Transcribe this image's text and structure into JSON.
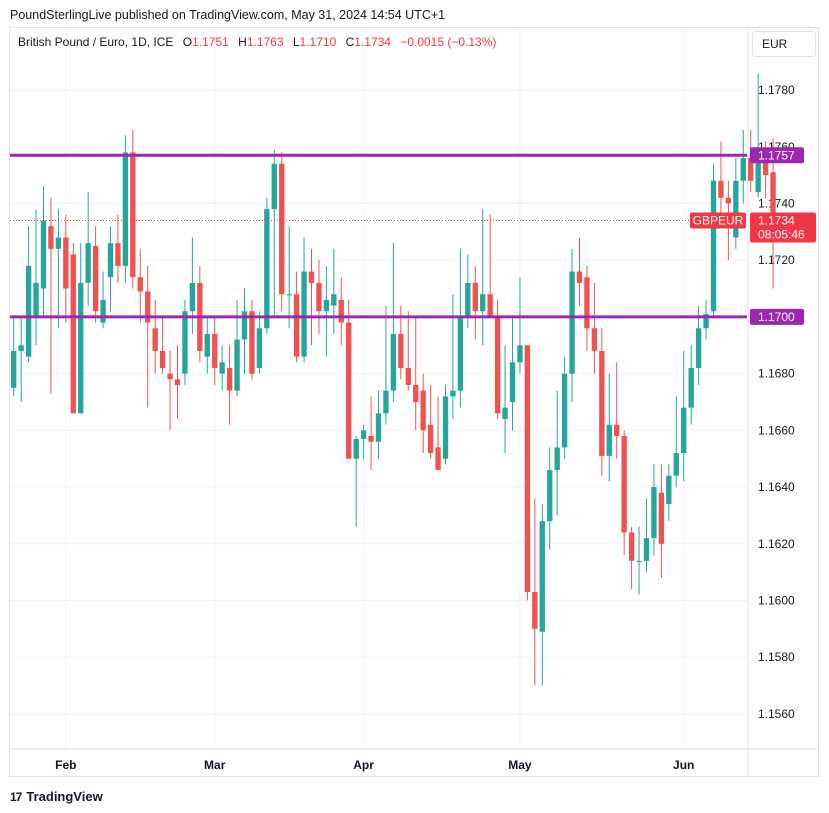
{
  "header": {
    "published": "PoundSterlingLive published on TradingView.com, May 31, 2024 14:54 UTC+1"
  },
  "legend": {
    "symbol": "British Pound / Euro, 1D, ICE",
    "o_label": "O",
    "o_value": "1.1751",
    "h_label": "H",
    "h_value": "1.1763",
    "l_label": "L",
    "l_value": "1.1710",
    "c_label": "C",
    "c_value": "1.1734",
    "change": "−0.0015 (−0.13%)"
  },
  "currency_button": "EUR",
  "footer": {
    "logo": "17",
    "brand": "TradingView"
  },
  "colors": {
    "up": "#26a69a",
    "down": "#ef5350",
    "level": "#9c27b0",
    "last": "#f23645"
  },
  "chart_data": {
    "type": "candlestick",
    "title": "British Pound / Euro, 1D, ICE",
    "y_ticks": [
      "1.1560",
      "1.1580",
      "1.1600",
      "1.1620",
      "1.1640",
      "1.1660",
      "1.1680",
      "1.1700",
      "1.1720",
      "1.1740",
      "1.1760",
      "1.1780"
    ],
    "y_tick_values": [
      1.156,
      1.158,
      1.16,
      1.162,
      1.164,
      1.166,
      1.168,
      1.17,
      1.172,
      1.174,
      1.176,
      1.178
    ],
    "ylim": [
      1.1548,
      1.1792
    ],
    "x_labels": [
      {
        "label": "Feb",
        "index": 7
      },
      {
        "label": "Mar",
        "index": 27
      },
      {
        "label": "Apr",
        "index": 47
      },
      {
        "label": "May",
        "index": 68
      },
      {
        "label": "Jun",
        "index": 90
      }
    ],
    "n_slots": 99,
    "levels": [
      {
        "value": 1.1757,
        "label": "1.1757"
      },
      {
        "value": 1.17,
        "label": "1.1700"
      }
    ],
    "last_price": {
      "value": 1.1734,
      "label": "1.1734",
      "symbol": "GBPEUR",
      "countdown": "08:05:46"
    },
    "candles": [
      {
        "o": 1.1675,
        "h": 1.17,
        "l": 1.1672,
        "c": 1.1688
      },
      {
        "o": 1.1688,
        "h": 1.17,
        "l": 1.167,
        "c": 1.169
      },
      {
        "o": 1.1686,
        "h": 1.1732,
        "l": 1.1684,
        "c": 1.1718
      },
      {
        "o": 1.17,
        "h": 1.1738,
        "l": 1.169,
        "c": 1.1712
      },
      {
        "o": 1.171,
        "h": 1.1746,
        "l": 1.17,
        "c": 1.1734
      },
      {
        "o": 1.1732,
        "h": 1.1742,
        "l": 1.1673,
        "c": 1.1724
      },
      {
        "o": 1.1724,
        "h": 1.1738,
        "l": 1.1696,
        "c": 1.1728
      },
      {
        "o": 1.1728,
        "h": 1.1736,
        "l": 1.1698,
        "c": 1.171
      },
      {
        "o": 1.1722,
        "h": 1.1726,
        "l": 1.1666,
        "c": 1.1666
      },
      {
        "o": 1.1666,
        "h": 1.1726,
        "l": 1.1666,
        "c": 1.1712
      },
      {
        "o": 1.1712,
        "h": 1.1744,
        "l": 1.1704,
        "c": 1.1726
      },
      {
        "o": 1.1725,
        "h": 1.1732,
        "l": 1.1698,
        "c": 1.1702
      },
      {
        "o": 1.1698,
        "h": 1.1716,
        "l": 1.1696,
        "c": 1.1706
      },
      {
        "o": 1.1714,
        "h": 1.1732,
        "l": 1.1702,
        "c": 1.1726
      },
      {
        "o": 1.1726,
        "h": 1.1736,
        "l": 1.1712,
        "c": 1.1718
      },
      {
        "o": 1.1718,
        "h": 1.1764,
        "l": 1.1712,
        "c": 1.1758
      },
      {
        "o": 1.1758,
        "h": 1.1766,
        "l": 1.171,
        "c": 1.1714
      },
      {
        "o": 1.1714,
        "h": 1.1724,
        "l": 1.1698,
        "c": 1.1709
      },
      {
        "o": 1.1709,
        "h": 1.1718,
        "l": 1.1668,
        "c": 1.1698
      },
      {
        "o": 1.1696,
        "h": 1.1706,
        "l": 1.168,
        "c": 1.1688
      },
      {
        "o": 1.1688,
        "h": 1.17,
        "l": 1.168,
        "c": 1.1682
      },
      {
        "o": 1.168,
        "h": 1.1688,
        "l": 1.166,
        "c": 1.1678
      },
      {
        "o": 1.1678,
        "h": 1.169,
        "l": 1.1664,
        "c": 1.1676
      },
      {
        "o": 1.168,
        "h": 1.1706,
        "l": 1.1676,
        "c": 1.1702
      },
      {
        "o": 1.1702,
        "h": 1.1728,
        "l": 1.1694,
        "c": 1.1712
      },
      {
        "o": 1.1712,
        "h": 1.1718,
        "l": 1.1684,
        "c": 1.1688
      },
      {
        "o": 1.1686,
        "h": 1.17,
        "l": 1.168,
        "c": 1.1694
      },
      {
        "o": 1.1694,
        "h": 1.17,
        "l": 1.1676,
        "c": 1.1682
      },
      {
        "o": 1.168,
        "h": 1.169,
        "l": 1.1674,
        "c": 1.1684
      },
      {
        "o": 1.1682,
        "h": 1.169,
        "l": 1.1662,
        "c": 1.1674
      },
      {
        "o": 1.1674,
        "h": 1.1706,
        "l": 1.1672,
        "c": 1.1692
      },
      {
        "o": 1.1692,
        "h": 1.171,
        "l": 1.168,
        "c": 1.1702
      },
      {
        "o": 1.1702,
        "h": 1.1706,
        "l": 1.1678,
        "c": 1.168
      },
      {
        "o": 1.1682,
        "h": 1.1702,
        "l": 1.168,
        "c": 1.1696
      },
      {
        "o": 1.1696,
        "h": 1.1742,
        "l": 1.1694,
        "c": 1.1738
      },
      {
        "o": 1.1738,
        "h": 1.1759,
        "l": 1.17,
        "c": 1.1754
      },
      {
        "o": 1.1754,
        "h": 1.1758,
        "l": 1.1702,
        "c": 1.1708
      },
      {
        "o": 1.1708,
        "h": 1.1732,
        "l": 1.1696,
        "c": 1.1708
      },
      {
        "o": 1.1708,
        "h": 1.1716,
        "l": 1.1684,
        "c": 1.1686
      },
      {
        "o": 1.1686,
        "h": 1.1728,
        "l": 1.1684,
        "c": 1.1716
      },
      {
        "o": 1.1716,
        "h": 1.1724,
        "l": 1.169,
        "c": 1.1712
      },
      {
        "o": 1.1712,
        "h": 1.172,
        "l": 1.1694,
        "c": 1.1702
      },
      {
        "o": 1.1702,
        "h": 1.1718,
        "l": 1.1686,
        "c": 1.1706
      },
      {
        "o": 1.1704,
        "h": 1.1724,
        "l": 1.1694,
        "c": 1.1708
      },
      {
        "o": 1.1706,
        "h": 1.1714,
        "l": 1.169,
        "c": 1.1698
      },
      {
        "o": 1.1698,
        "h": 1.1706,
        "l": 1.165,
        "c": 1.165
      },
      {
        "o": 1.165,
        "h": 1.1658,
        "l": 1.1626,
        "c": 1.1657
      },
      {
        "o": 1.1657,
        "h": 1.1662,
        "l": 1.165,
        "c": 1.166
      },
      {
        "o": 1.1658,
        "h": 1.1672,
        "l": 1.1646,
        "c": 1.1656
      },
      {
        "o": 1.1656,
        "h": 1.1674,
        "l": 1.165,
        "c": 1.1666
      },
      {
        "o": 1.1666,
        "h": 1.1704,
        "l": 1.1662,
        "c": 1.1674
      },
      {
        "o": 1.1674,
        "h": 1.1726,
        "l": 1.167,
        "c": 1.1694
      },
      {
        "o": 1.1694,
        "h": 1.1704,
        "l": 1.1678,
        "c": 1.1682
      },
      {
        "o": 1.1682,
        "h": 1.1702,
        "l": 1.1674,
        "c": 1.1676
      },
      {
        "o": 1.1676,
        "h": 1.17,
        "l": 1.166,
        "c": 1.167
      },
      {
        "o": 1.1674,
        "h": 1.168,
        "l": 1.1652,
        "c": 1.166
      },
      {
        "o": 1.1662,
        "h": 1.1676,
        "l": 1.165,
        "c": 1.1652
      },
      {
        "o": 1.1654,
        "h": 1.1672,
        "l": 1.1646,
        "c": 1.1646
      },
      {
        "o": 1.165,
        "h": 1.1676,
        "l": 1.1648,
        "c": 1.1672
      },
      {
        "o": 1.1672,
        "h": 1.1708,
        "l": 1.1664,
        "c": 1.1674
      },
      {
        "o": 1.1674,
        "h": 1.1724,
        "l": 1.1668,
        "c": 1.17
      },
      {
        "o": 1.17,
        "h": 1.1722,
        "l": 1.1696,
        "c": 1.1712
      },
      {
        "o": 1.1712,
        "h": 1.1718,
        "l": 1.1692,
        "c": 1.1702
      },
      {
        "o": 1.1702,
        "h": 1.1738,
        "l": 1.169,
        "c": 1.1708
      },
      {
        "o": 1.1708,
        "h": 1.1736,
        "l": 1.17,
        "c": 1.17
      },
      {
        "o": 1.17,
        "h": 1.1706,
        "l": 1.1664,
        "c": 1.1666
      },
      {
        "o": 1.1664,
        "h": 1.169,
        "l": 1.1652,
        "c": 1.1668
      },
      {
        "o": 1.167,
        "h": 1.17,
        "l": 1.166,
        "c": 1.1684
      },
      {
        "o": 1.1684,
        "h": 1.1714,
        "l": 1.168,
        "c": 1.169
      },
      {
        "o": 1.169,
        "h": 1.169,
        "l": 1.16,
        "c": 1.1603
      },
      {
        "o": 1.1603,
        "h": 1.1636,
        "l": 1.157,
        "c": 1.159
      },
      {
        "o": 1.1589,
        "h": 1.1634,
        "l": 1.157,
        "c": 1.1628
      },
      {
        "o": 1.1628,
        "h": 1.1654,
        "l": 1.1618,
        "c": 1.1646
      },
      {
        "o": 1.1646,
        "h": 1.1674,
        "l": 1.163,
        "c": 1.1654
      },
      {
        "o": 1.1654,
        "h": 1.1686,
        "l": 1.165,
        "c": 1.168
      },
      {
        "o": 1.168,
        "h": 1.1724,
        "l": 1.167,
        "c": 1.1716
      },
      {
        "o": 1.1716,
        "h": 1.1728,
        "l": 1.1704,
        "c": 1.1712
      },
      {
        "o": 1.1714,
        "h": 1.1718,
        "l": 1.1688,
        "c": 1.1696
      },
      {
        "o": 1.1696,
        "h": 1.1712,
        "l": 1.168,
        "c": 1.1688
      },
      {
        "o": 1.1688,
        "h": 1.1696,
        "l": 1.1644,
        "c": 1.1651
      },
      {
        "o": 1.1651,
        "h": 1.168,
        "l": 1.1642,
        "c": 1.1662
      },
      {
        "o": 1.1662,
        "h": 1.1684,
        "l": 1.165,
        "c": 1.1658
      },
      {
        "o": 1.1658,
        "h": 1.166,
        "l": 1.1616,
        "c": 1.1624
      },
      {
        "o": 1.1624,
        "h": 1.1626,
        "l": 1.1604,
        "c": 1.1614
      },
      {
        "o": 1.1614,
        "h": 1.1626,
        "l": 1.1602,
        "c": 1.1614
      },
      {
        "o": 1.1614,
        "h": 1.1636,
        "l": 1.161,
        "c": 1.1622
      },
      {
        "o": 1.1622,
        "h": 1.1648,
        "l": 1.1616,
        "c": 1.164
      },
      {
        "o": 1.1638,
        "h": 1.1648,
        "l": 1.1608,
        "c": 1.162
      },
      {
        "o": 1.1634,
        "h": 1.1648,
        "l": 1.1628,
        "c": 1.1644
      },
      {
        "o": 1.1644,
        "h": 1.1672,
        "l": 1.164,
        "c": 1.1652
      },
      {
        "o": 1.1652,
        "h": 1.1688,
        "l": 1.1642,
        "c": 1.1668
      },
      {
        "o": 1.1668,
        "h": 1.169,
        "l": 1.1662,
        "c": 1.1682
      },
      {
        "o": 1.1682,
        "h": 1.1704,
        "l": 1.1676,
        "c": 1.1696
      },
      {
        "o": 1.1696,
        "h": 1.1706,
        "l": 1.1692,
        "c": 1.1701
      },
      {
        "o": 1.1702,
        "h": 1.1754,
        "l": 1.17,
        "c": 1.1748
      },
      {
        "o": 1.1748,
        "h": 1.1762,
        "l": 1.1732,
        "c": 1.1742
      },
      {
        "o": 1.1742,
        "h": 1.1748,
        "l": 1.172,
        "c": 1.174
      },
      {
        "o": 1.1728,
        "h": 1.1756,
        "l": 1.1724,
        "c": 1.1748
      },
      {
        "o": 1.1748,
        "h": 1.1766,
        "l": 1.174,
        "c": 1.1756
      },
      {
        "o": 1.1756,
        "h": 1.1766,
        "l": 1.1744,
        "c": 1.1748
      },
      {
        "o": 1.1744,
        "h": 1.1786,
        "l": 1.1742,
        "c": 1.1756
      },
      {
        "o": 1.1756,
        "h": 1.1762,
        "l": 1.1742,
        "c": 1.175
      },
      {
        "o": 1.1751,
        "h": 1.1763,
        "l": 1.171,
        "c": 1.1734
      }
    ]
  }
}
